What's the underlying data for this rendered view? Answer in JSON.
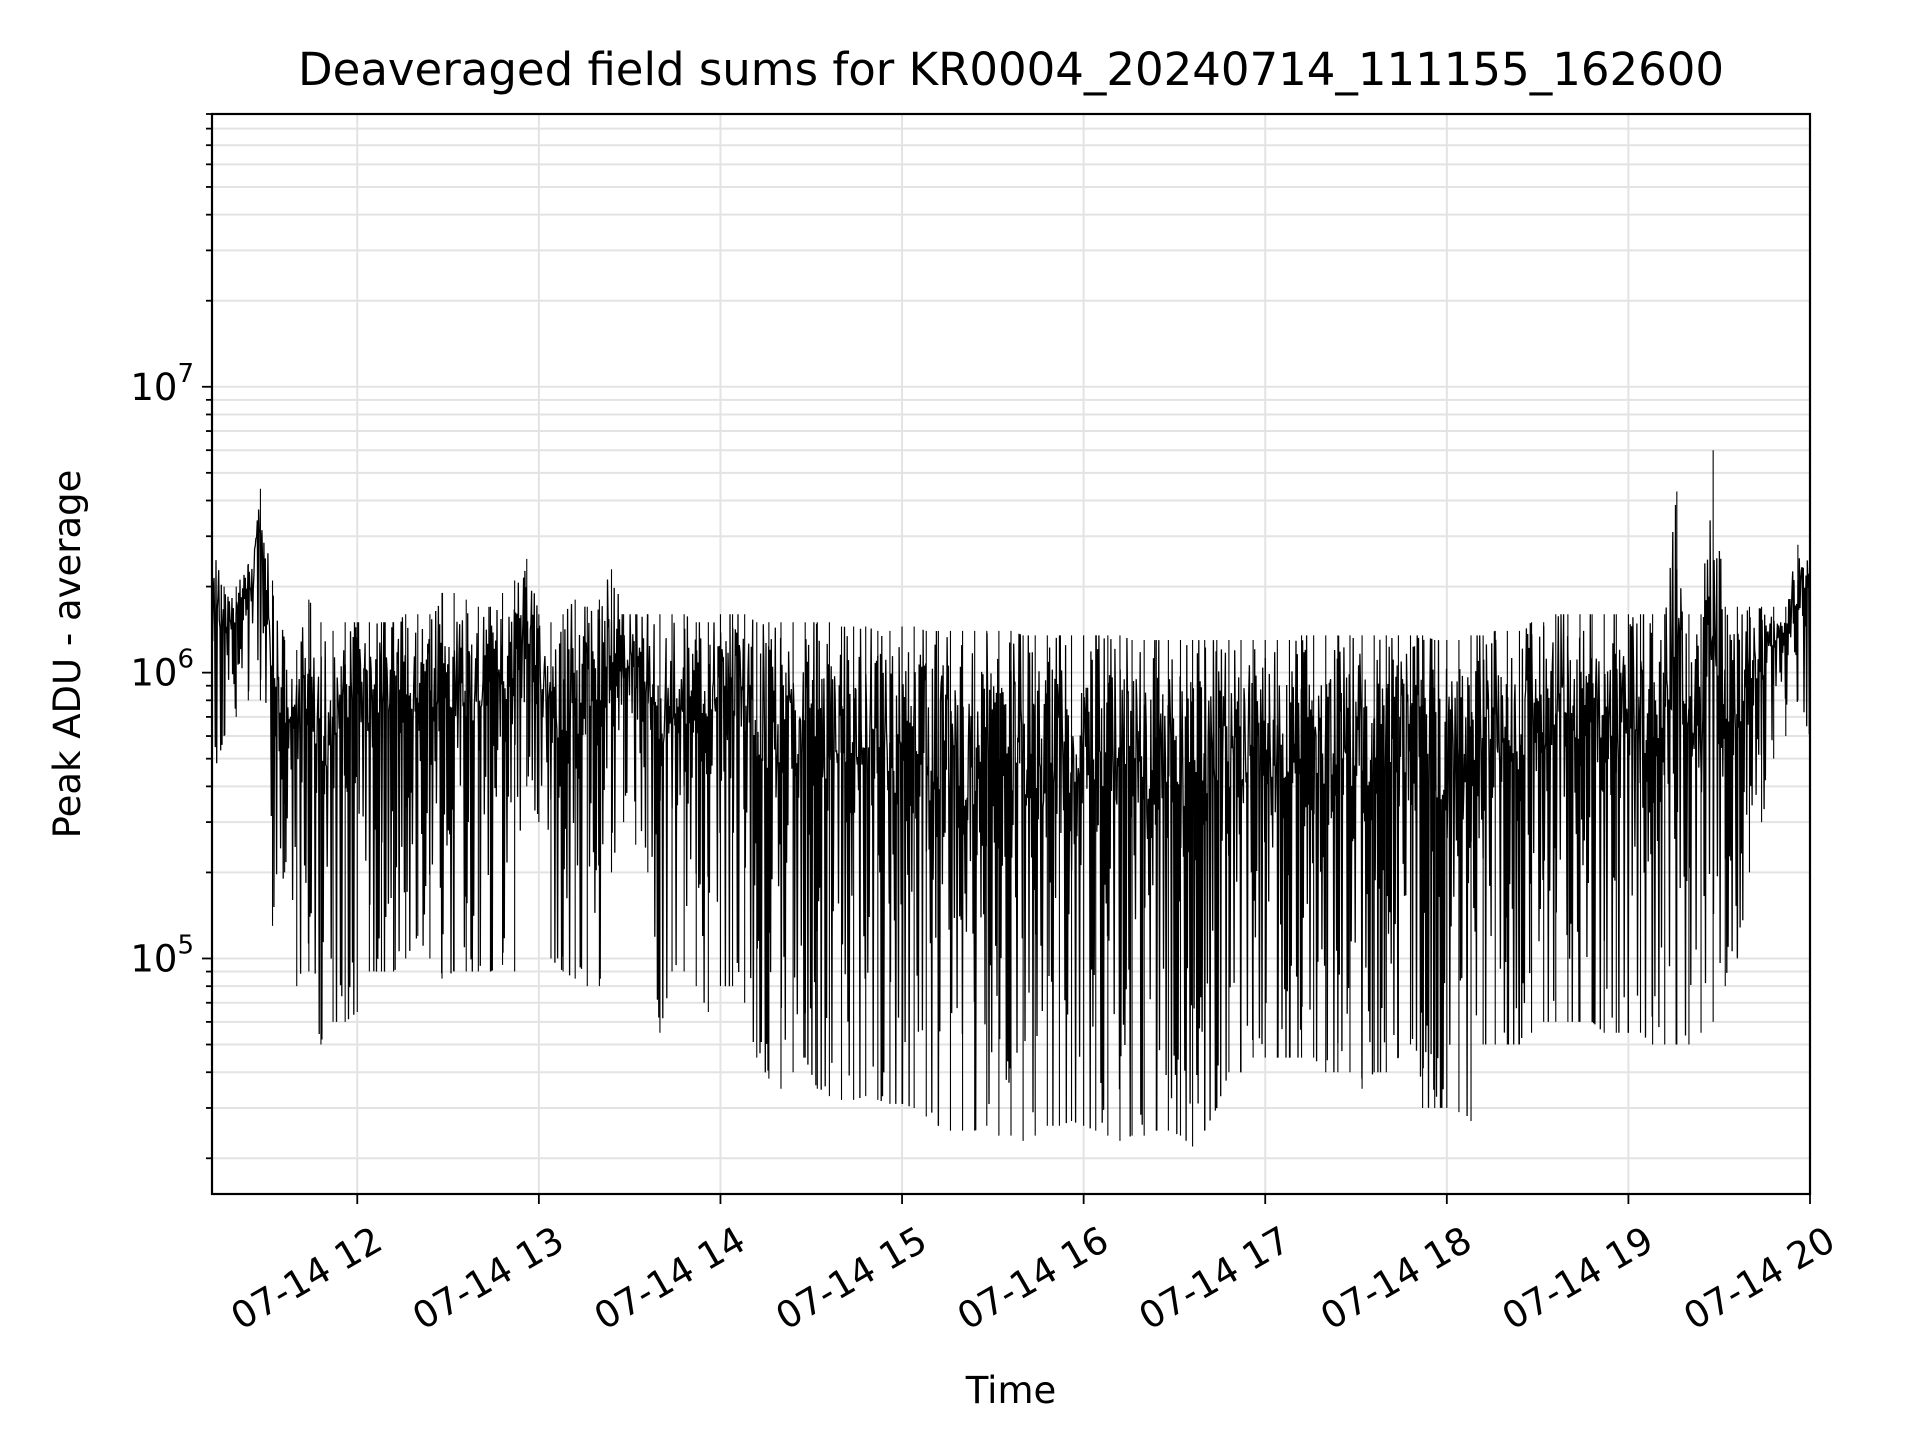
{
  "chart_data": {
    "type": "line",
    "title": "Deaveraged field sums for KR0004_20240714_111155_162600",
    "xlabel": "Time",
    "ylabel": "Peak ADU - average",
    "yscale": "log",
    "xlim": [
      "2024-07-14 11:12",
      "2024-07-14 20:00"
    ],
    "ylim": [
      15000,
      90000000
    ],
    "x_ticks": [
      {
        "value": "2024-07-14 12:00",
        "label": "07-14 12"
      },
      {
        "value": "2024-07-14 13:00",
        "label": "07-14 13"
      },
      {
        "value": "2024-07-14 14:00",
        "label": "07-14 14"
      },
      {
        "value": "2024-07-14 15:00",
        "label": "07-14 15"
      },
      {
        "value": "2024-07-14 16:00",
        "label": "07-14 16"
      },
      {
        "value": "2024-07-14 17:00",
        "label": "07-14 17"
      },
      {
        "value": "2024-07-14 18:00",
        "label": "07-14 18"
      },
      {
        "value": "2024-07-14 19:00",
        "label": "07-14 19"
      },
      {
        "value": "2024-07-14 20:00",
        "label": "07-14 20"
      }
    ],
    "y_ticks": [
      {
        "value": 100000,
        "base": "10",
        "exp": "5"
      },
      {
        "value": 1000000,
        "base": "10",
        "exp": "6"
      },
      {
        "value": 10000000,
        "base": "10",
        "exp": "7"
      }
    ],
    "grid": true,
    "legend": "none",
    "line_color": "#000000",
    "series": [
      {
        "x": [
          "2024-07-14 11:12",
          "2024-07-14 11:16",
          "2024-07-14 11:20",
          "2024-07-14 11:24",
          "2024-07-14 11:28",
          "2024-07-14 11:32",
          "2024-07-14 11:36",
          "2024-07-14 11:40",
          "2024-07-14 11:44",
          "2024-07-14 11:48",
          "2024-07-14 11:52",
          "2024-07-14 11:56",
          "2024-07-14 12:00",
          "2024-07-14 12:04",
          "2024-07-14 12:08",
          "2024-07-14 12:12",
          "2024-07-14 12:16",
          "2024-07-14 12:20",
          "2024-07-14 12:24",
          "2024-07-14 12:28",
          "2024-07-14 12:32",
          "2024-07-14 12:36",
          "2024-07-14 12:40",
          "2024-07-14 12:44",
          "2024-07-14 12:48",
          "2024-07-14 12:52",
          "2024-07-14 12:56",
          "2024-07-14 13:00",
          "2024-07-14 13:04",
          "2024-07-14 13:08",
          "2024-07-14 13:12",
          "2024-07-14 13:16",
          "2024-07-14 13:20",
          "2024-07-14 13:24",
          "2024-07-14 13:28",
          "2024-07-14 13:32",
          "2024-07-14 13:36",
          "2024-07-14 13:40",
          "2024-07-14 13:44",
          "2024-07-14 13:48",
          "2024-07-14 13:52",
          "2024-07-14 13:56",
          "2024-07-14 14:00",
          "2024-07-14 14:04",
          "2024-07-14 14:08",
          "2024-07-14 14:12",
          "2024-07-14 14:16",
          "2024-07-14 14:20",
          "2024-07-14 14:24",
          "2024-07-14 14:28",
          "2024-07-14 14:32",
          "2024-07-14 14:36",
          "2024-07-14 14:40",
          "2024-07-14 14:44",
          "2024-07-14 14:48",
          "2024-07-14 14:52",
          "2024-07-14 14:56",
          "2024-07-14 15:00",
          "2024-07-14 15:04",
          "2024-07-14 15:08",
          "2024-07-14 15:12",
          "2024-07-14 15:16",
          "2024-07-14 15:20",
          "2024-07-14 15:24",
          "2024-07-14 15:28",
          "2024-07-14 15:32",
          "2024-07-14 15:36",
          "2024-07-14 15:40",
          "2024-07-14 15:44",
          "2024-07-14 15:48",
          "2024-07-14 15:52",
          "2024-07-14 15:56",
          "2024-07-14 16:00",
          "2024-07-14 16:04",
          "2024-07-14 16:08",
          "2024-07-14 16:12",
          "2024-07-14 16:16",
          "2024-07-14 16:20",
          "2024-07-14 16:24",
          "2024-07-14 16:28",
          "2024-07-14 16:32",
          "2024-07-14 16:36",
          "2024-07-14 16:40",
          "2024-07-14 16:44",
          "2024-07-14 16:48",
          "2024-07-14 16:52",
          "2024-07-14 16:56",
          "2024-07-14 17:00",
          "2024-07-14 17:04",
          "2024-07-14 17:08",
          "2024-07-14 17:12",
          "2024-07-14 17:16",
          "2024-07-14 17:20",
          "2024-07-14 17:24",
          "2024-07-14 17:28",
          "2024-07-14 17:32",
          "2024-07-14 17:36",
          "2024-07-14 17:40",
          "2024-07-14 17:44",
          "2024-07-14 17:48",
          "2024-07-14 17:52",
          "2024-07-14 17:56",
          "2024-07-14 18:00",
          "2024-07-14 18:04",
          "2024-07-14 18:08",
          "2024-07-14 18:12",
          "2024-07-14 18:16",
          "2024-07-14 18:20",
          "2024-07-14 18:24",
          "2024-07-14 18:28",
          "2024-07-14 18:32",
          "2024-07-14 18:36",
          "2024-07-14 18:40",
          "2024-07-14 18:44",
          "2024-07-14 18:48",
          "2024-07-14 18:52",
          "2024-07-14 18:56",
          "2024-07-14 19:00",
          "2024-07-14 19:04",
          "2024-07-14 19:08",
          "2024-07-14 19:12",
          "2024-07-14 19:16",
          "2024-07-14 19:20",
          "2024-07-14 19:24",
          "2024-07-14 19:28",
          "2024-07-14 19:32",
          "2024-07-14 19:36",
          "2024-07-14 19:40",
          "2024-07-14 19:44",
          "2024-07-14 19:48",
          "2024-07-14 19:52",
          "2024-07-14 19:56",
          "2024-07-14 20:00"
        ],
        "y_max": [
          2900000,
          2000000,
          2000000,
          2400000,
          4400000,
          2100000,
          1300000,
          1200000,
          1800000,
          1500000,
          1400000,
          1500000,
          1500000,
          1500000,
          1500000,
          1500000,
          1600000,
          1600000,
          1600000,
          1900000,
          1900000,
          1800000,
          1700000,
          1700000,
          1900000,
          2100000,
          2500000,
          1600000,
          1500000,
          1600000,
          1800000,
          1700000,
          1800000,
          2300000,
          1600000,
          1600000,
          1600000,
          1600000,
          1600000,
          1600000,
          1500000,
          1500000,
          1600000,
          1600000,
          1600000,
          1500000,
          1500000,
          1500000,
          1500000,
          1500000,
          1500000,
          1500000,
          1450000,
          1450000,
          1450000,
          1400000,
          1400000,
          1450000,
          1450000,
          1400000,
          1400000,
          1400000,
          1400000,
          1400000,
          1400000,
          1400000,
          1400000,
          1350000,
          1350000,
          1350000,
          1350000,
          1350000,
          1350000,
          1350000,
          1350000,
          1350000,
          1300000,
          1300000,
          1300000,
          1300000,
          1300000,
          1300000,
          1300000,
          1300000,
          1300000,
          1300000,
          1300000,
          1300000,
          1300000,
          1300000,
          1350000,
          1350000,
          1350000,
          1350000,
          1350000,
          1350000,
          1350000,
          1350000,
          1350000,
          1350000,
          1350000,
          1300000,
          1300000,
          1300000,
          1350000,
          1350000,
          1400000,
          1400000,
          1400000,
          1500000,
          1500000,
          1600000,
          1600000,
          1600000,
          1600000,
          1600000,
          1600000,
          1600000,
          1600000,
          1600000,
          1600000,
          4300000,
          1600000,
          1600000,
          6000000,
          1700000,
          1700000,
          1700000,
          1700000,
          1700000,
          1700000,
          2800000,
          2400000
        ],
        "y_min": [
          400000,
          600000,
          700000,
          800000,
          800000,
          130000,
          200000,
          80000,
          90000,
          50000,
          60000,
          60000,
          65000,
          90000,
          90000,
          90000,
          100000,
          120000,
          100000,
          85000,
          90000,
          90000,
          90000,
          90000,
          95000,
          90000,
          400000,
          300000,
          100000,
          90000,
          85000,
          80000,
          80000,
          200000,
          300000,
          250000,
          200000,
          55000,
          90000,
          90000,
          80000,
          65000,
          80000,
          80000,
          70000,
          45000,
          38000,
          35000,
          40000,
          45000,
          35000,
          33000,
          32000,
          32000,
          33000,
          32000,
          31000,
          31000,
          30000,
          28000,
          26000,
          25000,
          25000,
          25000,
          26000,
          24000,
          24000,
          23000,
          24000,
          26000,
          26000,
          27000,
          26000,
          25000,
          24000,
          23000,
          24000,
          24000,
          25000,
          25000,
          24000,
          22000,
          25000,
          30000,
          40000,
          40000,
          45000,
          45000,
          45000,
          45000,
          45000,
          45000,
          40000,
          40000,
          40000,
          35000,
          40000,
          40000,
          45000,
          50000,
          30000,
          30000,
          30000,
          29000,
          27000,
          50000,
          50000,
          50000,
          50000,
          55000,
          60000,
          60000,
          60000,
          60000,
          60000,
          55000,
          55000,
          55000,
          55000,
          50000,
          50000,
          50000,
          50000,
          55000,
          60000,
          80000,
          100000,
          200000,
          300000,
          500000,
          600000,
          800000,
          600000
        ]
      }
    ]
  }
}
